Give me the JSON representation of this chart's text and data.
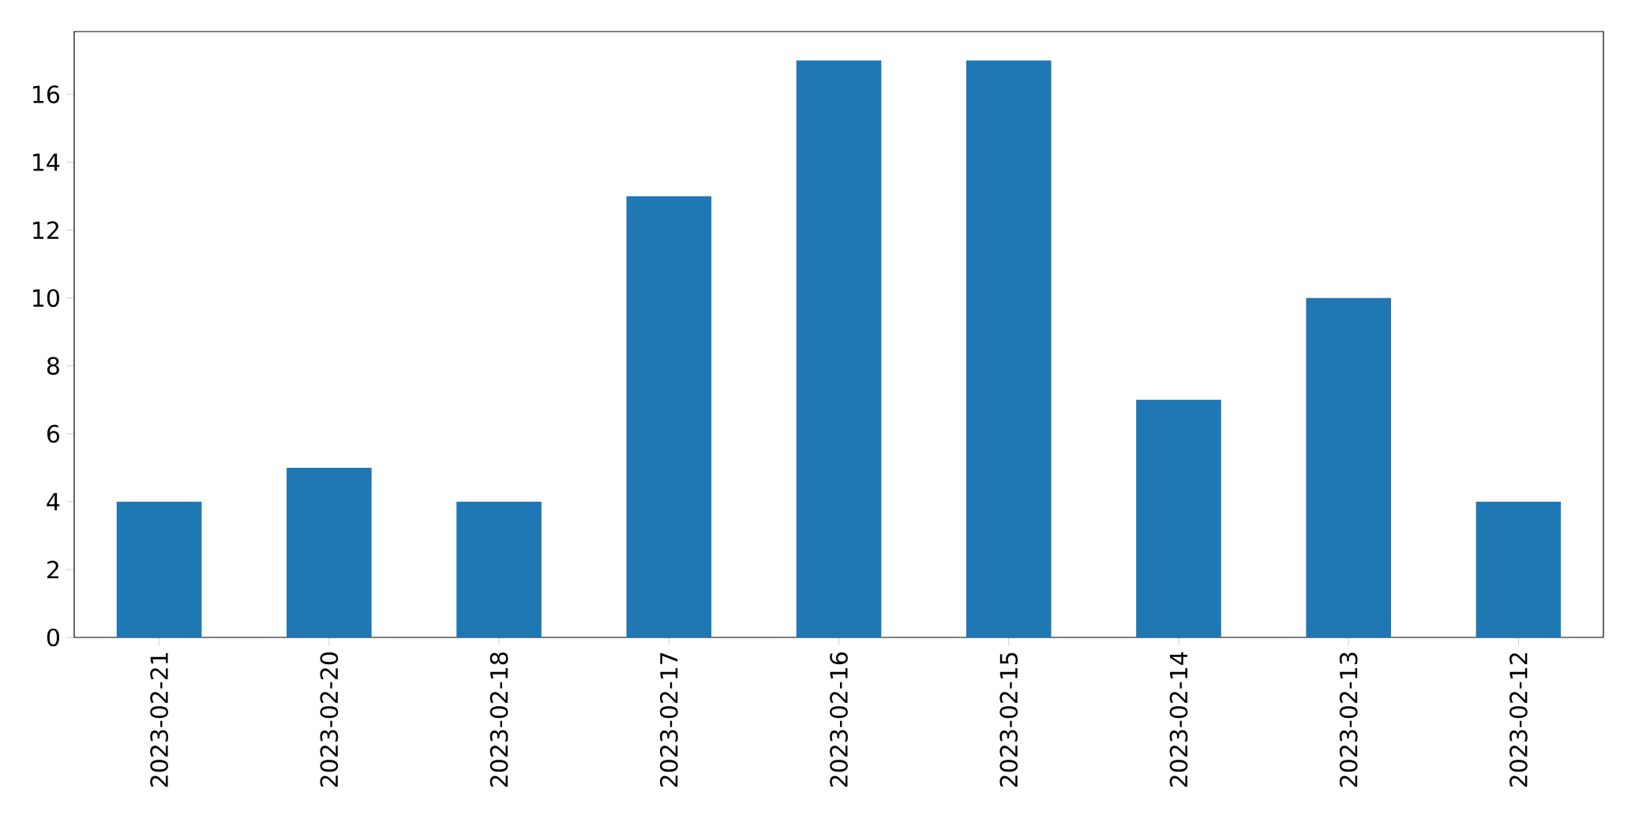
{
  "chart_data": {
    "type": "bar",
    "categories": [
      "2023-02-21",
      "2023-02-20",
      "2023-02-18",
      "2023-02-17",
      "2023-02-16",
      "2023-02-15",
      "2023-02-14",
      "2023-02-13",
      "2023-02-12"
    ],
    "values": [
      4,
      5,
      4,
      13,
      17,
      17,
      7,
      10,
      4
    ],
    "color": "#1f77b4",
    "ylim": [
      0,
      17.85
    ],
    "yticks": [
      0,
      2,
      4,
      6,
      8,
      10,
      12,
      14,
      16
    ],
    "grid": false
  }
}
